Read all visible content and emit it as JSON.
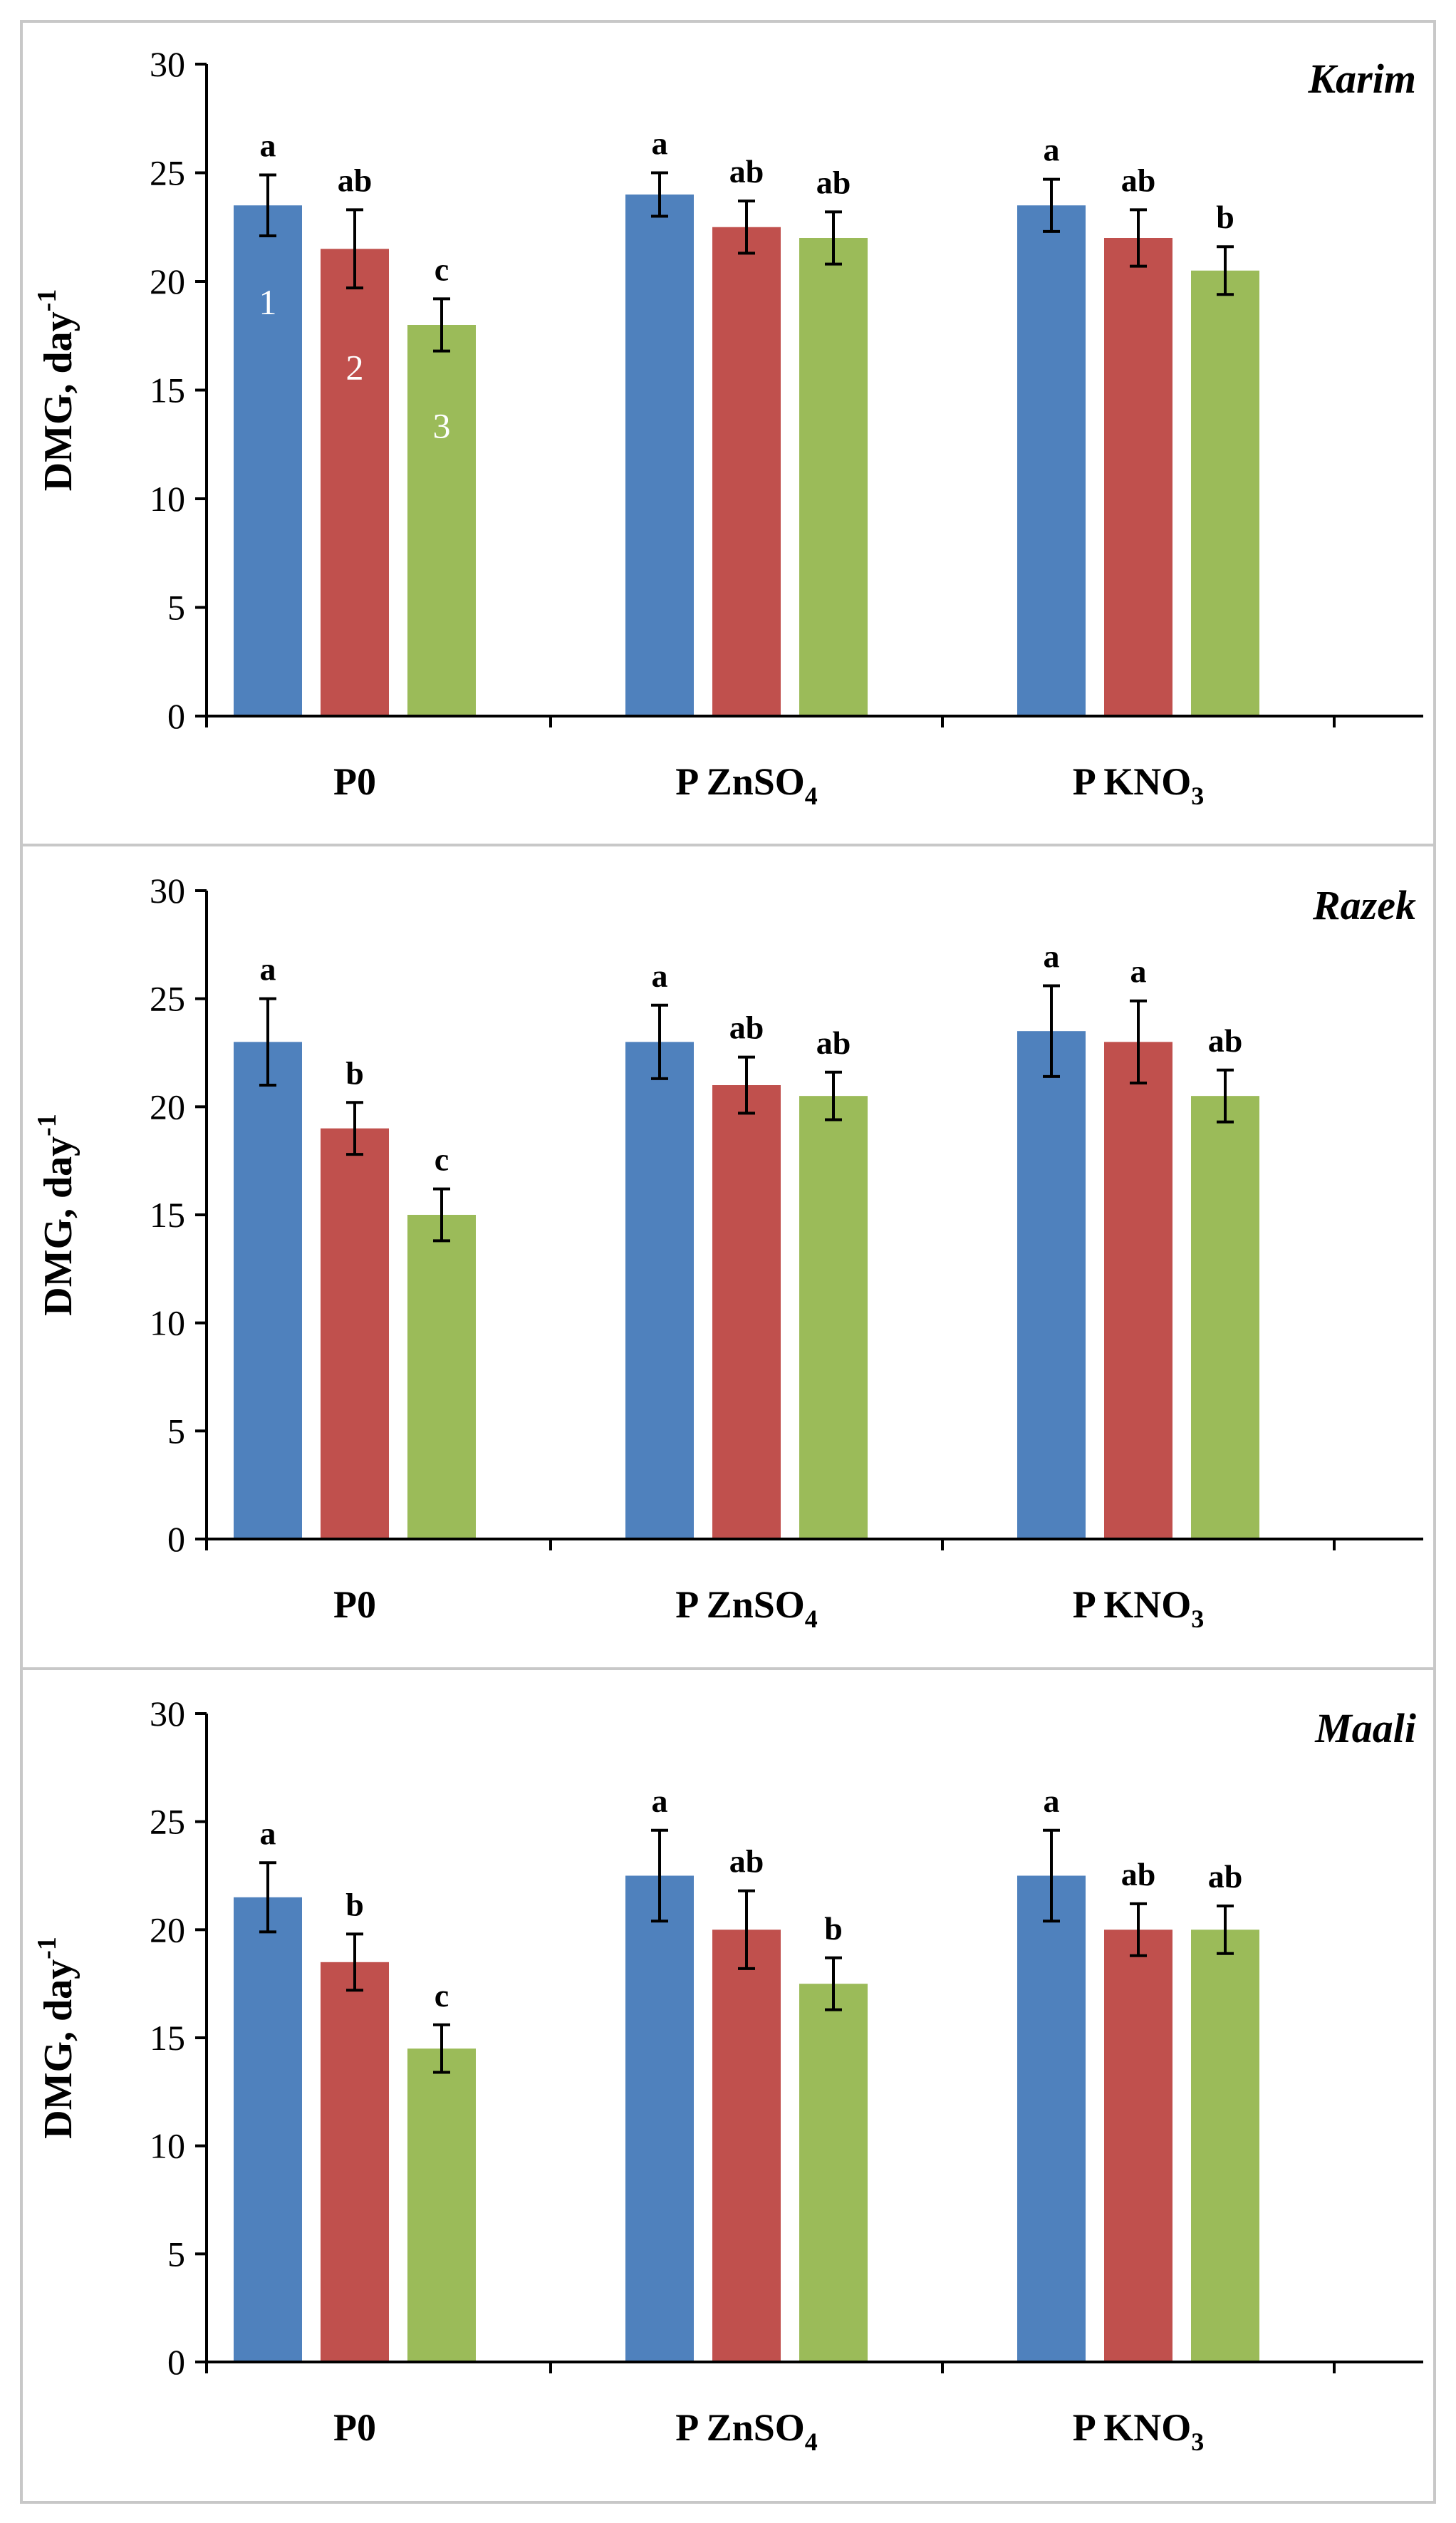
{
  "colors": {
    "series_1": "#4f81bd",
    "series_2": "#c0504d",
    "series_3": "#9bbb59"
  },
  "chart_data": [
    {
      "type": "bar",
      "title": "Karim",
      "ylabel": "DMG, day",
      "ylabel_superscript": "-1",
      "ylim": [
        0,
        30
      ],
      "yticks": [
        "0",
        "5",
        "10",
        "15",
        "20",
        "25",
        "30"
      ],
      "categories": [
        {
          "main": "P0",
          "sub": "",
          "tail": ""
        },
        {
          "main": "P ZnSO",
          "sub": "4",
          "tail": ""
        },
        {
          "main": "P KNO",
          "sub": "3",
          "tail": ""
        }
      ],
      "series": [
        {
          "values": [
            23.5,
            24.0,
            23.5
          ],
          "errors": [
            1.4,
            1.0,
            1.2
          ],
          "letters": [
            "a",
            "a",
            "a"
          ]
        },
        {
          "values": [
            21.5,
            22.5,
            22.0
          ],
          "errors": [
            1.8,
            1.2,
            1.3
          ],
          "letters": [
            "ab",
            "ab",
            "ab"
          ]
        },
        {
          "values": [
            18.0,
            22.0,
            20.5
          ],
          "errors": [
            1.2,
            1.2,
            1.1
          ],
          "letters": [
            "c",
            "ab",
            "b"
          ]
        }
      ],
      "bar_labels": [
        "1",
        "2",
        "3"
      ]
    },
    {
      "type": "bar",
      "title": "Razek",
      "ylabel": "DMG, day",
      "ylabel_superscript": "-1",
      "ylim": [
        0,
        30
      ],
      "yticks": [
        "0",
        "5",
        "10",
        "15",
        "20",
        "25",
        "30"
      ],
      "categories": [
        {
          "main": "P0",
          "sub": "",
          "tail": ""
        },
        {
          "main": "P ZnSO",
          "sub": "4",
          "tail": ""
        },
        {
          "main": "P KNO",
          "sub": "3",
          "tail": ""
        }
      ],
      "series": [
        {
          "values": [
            23.0,
            23.0,
            23.5
          ],
          "errors": [
            2.0,
            1.7,
            2.1
          ],
          "letters": [
            "a",
            "a",
            "a"
          ]
        },
        {
          "values": [
            19.0,
            21.0,
            23.0
          ],
          "errors": [
            1.2,
            1.3,
            1.9
          ],
          "letters": [
            "b",
            "ab",
            "a"
          ]
        },
        {
          "values": [
            15.0,
            20.5,
            20.5
          ],
          "errors": [
            1.2,
            1.1,
            1.2
          ],
          "letters": [
            "c",
            "ab",
            "ab"
          ]
        }
      ]
    },
    {
      "type": "bar",
      "title": "Maali",
      "ylabel": "DMG, day",
      "ylabel_superscript": "-1",
      "ylim": [
        0,
        30
      ],
      "yticks": [
        "0",
        "5",
        "10",
        "15",
        "20",
        "25",
        "30"
      ],
      "categories": [
        {
          "main": "P0",
          "sub": "",
          "tail": ""
        },
        {
          "main": "P ZnSO",
          "sub": "4",
          "tail": ""
        },
        {
          "main": "P KNO",
          "sub": "3",
          "tail": ""
        }
      ],
      "series": [
        {
          "values": [
            21.5,
            22.5,
            22.5
          ],
          "errors": [
            1.6,
            2.1,
            2.1
          ],
          "letters": [
            "a",
            "a",
            "a"
          ]
        },
        {
          "values": [
            18.5,
            20.0,
            20.0
          ],
          "errors": [
            1.3,
            1.8,
            1.2
          ],
          "letters": [
            "b",
            "ab",
            "ab"
          ]
        },
        {
          "values": [
            14.5,
            17.5,
            20.0
          ],
          "errors": [
            1.1,
            1.2,
            1.1
          ],
          "letters": [
            "c",
            "b",
            "ab"
          ]
        }
      ]
    }
  ]
}
